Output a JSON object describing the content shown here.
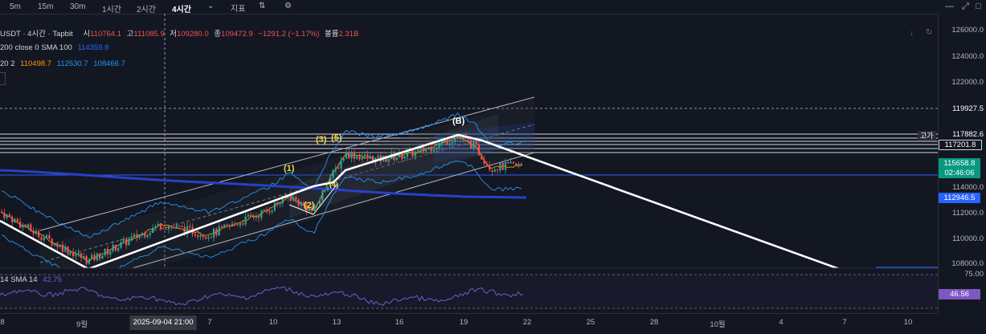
{
  "toolbar": {
    "timeframes": [
      "5m",
      "15m",
      "30m",
      "1시간",
      "2시간",
      "4시간"
    ],
    "active": "4시간",
    "indicators_label": "지표"
  },
  "legend": {
    "symbol": "USDT · 4시간 · Tapbit",
    "open_label": "시",
    "open": "110764.1",
    "high_label": "고",
    "high": "111085.9",
    "low_label": "저",
    "low": "109280.0",
    "close_label": "종",
    "close": "109472.9",
    "change": "−1291.2 (−1.17%)",
    "volume_label": "볼륨",
    "volume": "2.31B",
    "ma_label": "200 close 0 SMA 100",
    "ma_value": "114359.8",
    "bb_label": "20 2",
    "bb_mid": "110498.7",
    "bb_upper": "112530.7",
    "bb_lower": "108466.7",
    "rsi_label": "14 SMA 14",
    "rsi_value": "42.75"
  },
  "price_axis": {
    "ticks": [
      "126000.0",
      "124000.0",
      "122000.0",
      "119927.5",
      "117882.6",
      "114000.0",
      "112000.0",
      "110000.0",
      "108000.0"
    ],
    "high_tag": "고가",
    "high_price": "117882.6",
    "level_1": "117201.8",
    "current_price": "115658.8",
    "countdown": "02:46:06",
    "ma_price": "112946.5",
    "rsi_ticks": [
      "75.00"
    ],
    "rsi_value": "46.56"
  },
  "time_axis": {
    "ticks": [
      "8",
      "9월",
      "7",
      "10",
      "13",
      "16",
      "19",
      "22",
      "25",
      "28",
      "10월",
      "4",
      "7",
      "10"
    ],
    "crosshair": "2025-09-04  21:00"
  },
  "waves": {
    "w1": "(1)",
    "w2": "(2)",
    "w3": "(3)",
    "w4": "(4)",
    "w5": "(5)",
    "wB": "(B)"
  },
  "colors": {
    "up": "#26a69a",
    "down": "#ef5350",
    "ma": "#2962ff",
    "bb": "#2196f3",
    "bb_mid": "#ff9800",
    "rsi": "#7e57c2",
    "price_bg": "#089981",
    "ma_bg": "#2962ff"
  },
  "chart_data": {
    "type": "candlestick",
    "symbol": "USDT",
    "interval": "4시간",
    "candles_close": [
      110200,
      109800,
      110500,
      111200,
      110800,
      111500,
      112000,
      111600,
      112300,
      111800,
      112600,
      113000,
      112400,
      113200,
      113800,
      113300,
      114000,
      114600,
      114200,
      115000,
      115800,
      116400,
      115900,
      116800,
      117200,
      116600,
      117500,
      117882.6,
      117300,
      116800,
      116200,
      115800,
      115658.8
    ],
    "ma_200": 114359.8,
    "bb": {
      "mid": 110498.7,
      "upper": 112530.7,
      "lower": 108466.7
    },
    "rsi": 46.56
  }
}
